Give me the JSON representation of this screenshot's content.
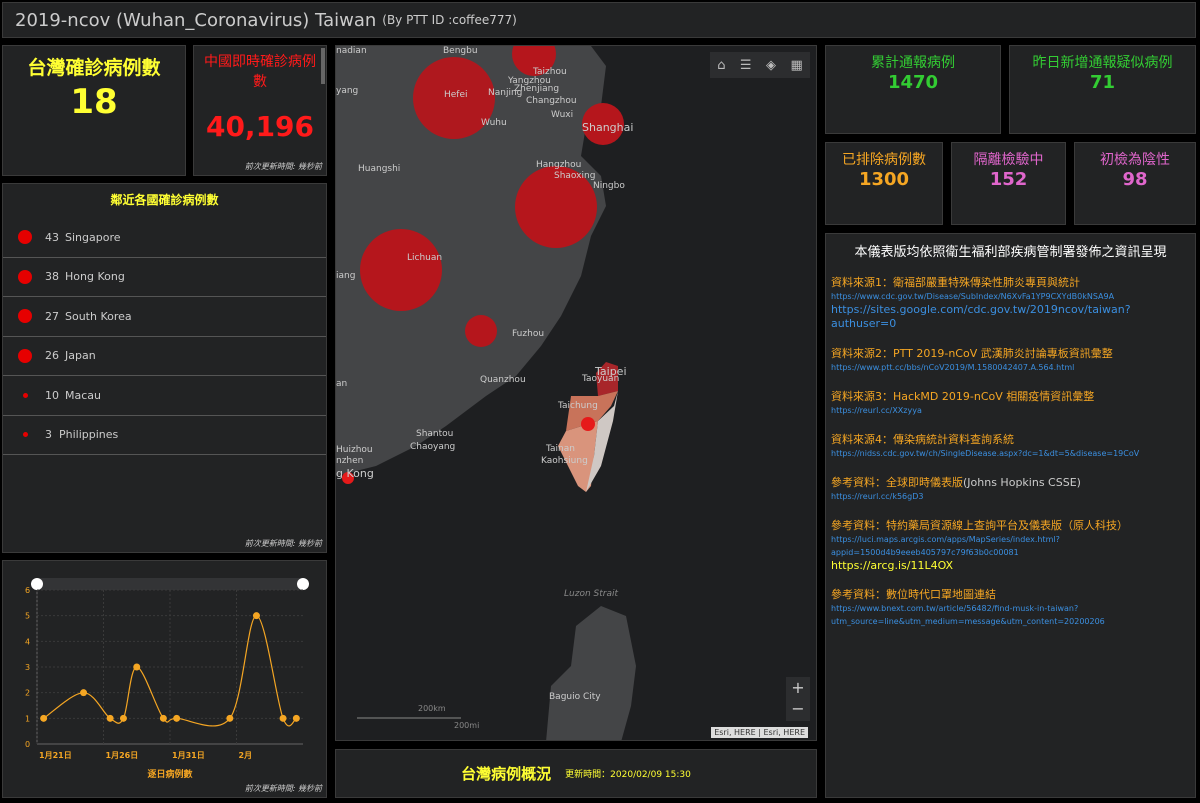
{
  "header": {
    "title": "2019-ncov (Wuhan_Coronavirus) Taiwan",
    "subtitle": "(By PTT ID :coffee777)"
  },
  "taiwan_box": {
    "label": "台灣確診病例數",
    "value": "18",
    "color": "#ffff33"
  },
  "china_box": {
    "label": "中國即時確診病例數",
    "value": "40,196",
    "color": "#ff1a1a",
    "footer": "前次更新時間: 幾秒前"
  },
  "nearby": {
    "title": "鄰近各國確診病例數",
    "footer": "前次更新時間: 幾秒前",
    "items": [
      {
        "count": "43",
        "name": "Singapore",
        "size": "large"
      },
      {
        "count": "38",
        "name": "Hong Kong",
        "size": "large"
      },
      {
        "count": "27",
        "name": "South Korea",
        "size": "large"
      },
      {
        "count": "26",
        "name": "Japan",
        "size": "large"
      },
      {
        "count": "10",
        "name": "Macau",
        "size": "small"
      },
      {
        "count": "3",
        "name": "Philippines",
        "size": "small"
      }
    ]
  },
  "chart_data": {
    "type": "line",
    "title": "",
    "xlabel": "逐日病例數",
    "ylabel": "",
    "ylim": [
      0,
      6
    ],
    "xlim": [
      "2020-01-21",
      "2020-02-10"
    ],
    "grid": true,
    "yticks": [
      "0",
      "1",
      "2",
      "3",
      "4",
      "5",
      "6"
    ],
    "xticks": [
      {
        "date": "2020-01-21",
        "label": "1月21日"
      },
      {
        "date": "2020-01-26",
        "label": "1月26日"
      },
      {
        "date": "2020-01-31",
        "label": "1月31日"
      },
      {
        "date": "2020-02-05",
        "label": "2月"
      }
    ],
    "x": [
      "2020-01-21",
      "2020-01-24",
      "2020-01-26",
      "2020-01-27",
      "2020-01-28",
      "2020-01-30",
      "2020-01-31",
      "2020-02-04",
      "2020-02-06",
      "2020-02-08",
      "2020-02-09"
    ],
    "values": [
      1,
      2,
      1,
      1,
      3,
      1,
      1,
      1,
      5,
      1,
      1
    ],
    "color": "#f5a623"
  },
  "chart_footer": "前次更新時間: 幾秒前",
  "map": {
    "labels": [
      "nadian",
      "Bengbu",
      "Taizhou",
      "Yangzhou",
      "Zhenjiang",
      "Nanjing",
      "Changzhou",
      "yang",
      "Hefei",
      "Wuhu",
      "Wuxi",
      "Shanghai",
      "Huangshi",
      "Hangzhou",
      "Shaoxing",
      "Ningbo",
      "Lichuan",
      "iang",
      "Fuzhou",
      "an",
      "Quanzhou",
      "Taipei",
      "Taoyuan",
      "Taichung",
      "Tainan",
      "Kaohsiung",
      "Shantou",
      "Chaoyang",
      "Huizhou",
      "nzhen",
      "g Kong",
      "Luzon Strait",
      "Baguio City"
    ],
    "scale_km": "200km",
    "scale_mi": "200mi",
    "attribution": "Esri, HERE | Esri, HERE",
    "zoom_in": "+",
    "zoom_out": "−",
    "tools": [
      "home-icon",
      "legend-icon",
      "layers-icon",
      "basemap-icon"
    ]
  },
  "map_footer": {
    "title": "台灣病例概況",
    "updated": "更新時間：2020/02/09 15:30"
  },
  "stats": [
    {
      "label": "累計通報病例",
      "value": "1470",
      "color": "#33cc33"
    },
    {
      "label": "昨日新增通報疑似病例",
      "value": "71",
      "color": "#33cc33"
    },
    {
      "label": "已排除病例數",
      "value": "1300",
      "color": "#f5a623"
    },
    {
      "label": "隔離檢驗中",
      "value": "152",
      "color": "#e066cc"
    },
    {
      "label": "初檢為陰性",
      "value": "98",
      "color": "#e066cc"
    }
  ],
  "info": {
    "title": "本儀表版均依照衛生福利部疾病管制署發佈之資訊呈現",
    "sources": [
      {
        "key": "資料來源1：",
        "title": "衛福部嚴重特殊傳染性肺炎專頁與統計",
        "links": [
          "https://www.cdc.gov.tw/Disease/SubIndex/N6XvFa1YP9CXYdB0kNSA9A",
          "https://sites.google.com/cdc.gov.tw/2019ncov/taiwan?authuser=0"
        ]
      },
      {
        "key": "資料來源2：",
        "title": "PTT 2019-nCoV 武漢肺炎討論專板資訊彙整",
        "links": [
          "https://www.ptt.cc/bbs/nCoV2019/M.1580042407.A.564.html"
        ]
      },
      {
        "key": "資料來源3：",
        "title": "HackMD 2019-nCoV 相關疫情資訊彙整",
        "links": [
          "https://reurl.cc/XXzyya"
        ]
      },
      {
        "key": "資料來源4：",
        "title": "傳染病統計資料查詢系統",
        "links": [
          "https://nidss.cdc.gov.tw/ch/SingleDisease.aspx?dc=1&dt=5&disease=19CoV"
        ]
      },
      {
        "key": "參考資料：",
        "title": "全球即時儀表版",
        "extra": "(Johns Hopkins CSSE)",
        "links": [
          "https://reurl.cc/k56gD3"
        ]
      },
      {
        "key": "參考資料：",
        "title": "特約藥局資源線上查詢平台及儀表版（原人科技）",
        "links": [
          "https://luci.maps.arcgis.com/apps/MapSeries/index.html?",
          "appid=1500d4b9eeeb405797c79f63b0c00081",
          "https://arcg.is/11L4OX"
        ]
      },
      {
        "key": "參考資料：",
        "title": "數位時代口罩地圖連結",
        "links": [
          "https://www.bnext.com.tw/article/56482/find-musk-in-taiwan?",
          "utm_source=line&utm_medium=message&utm_content=20200206"
        ]
      }
    ]
  }
}
